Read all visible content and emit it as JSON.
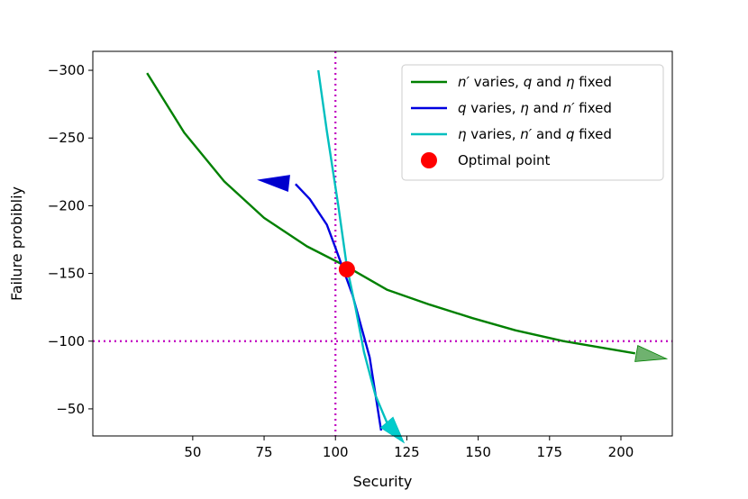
{
  "chart_data": {
    "type": "line",
    "xlabel": "Security",
    "ylabel": "Failure probibliy",
    "xlim": [
      15,
      218
    ],
    "ylim": [
      -30,
      -314
    ],
    "x_ticks": [
      50,
      75,
      100,
      125,
      150,
      175,
      200
    ],
    "x_tick_labels": [
      "50",
      "75",
      "100",
      "125",
      "150",
      "175",
      "200"
    ],
    "y_ticks": [
      -300,
      -250,
      -200,
      -150,
      -100,
      -50
    ],
    "y_tick_labels": [
      "−300",
      "−250",
      "−200",
      "−150",
      "−100",
      "−50"
    ],
    "grid": false,
    "legend_position": "top-right",
    "series": [
      {
        "name": "n′ varies, q and η fixed",
        "legend_parts": [
          {
            "text": "n′",
            "italic": true
          },
          {
            "text": " varies, ",
            "italic": false
          },
          {
            "text": "q",
            "italic": true
          },
          {
            "text": " and ",
            "italic": false
          },
          {
            "text": "η",
            "italic": true
          },
          {
            "text": " fixed",
            "italic": false
          }
        ],
        "color": "#008000",
        "x": [
          34,
          47,
          61,
          75,
          90,
          104,
          118,
          133,
          148,
          163,
          180,
          205
        ],
        "y": [
          -298,
          -254,
          -218,
          -191,
          -170,
          -155,
          -138,
          -127,
          -117,
          -108,
          -100,
          -91
        ],
        "arrow_tip": {
          "x": 216,
          "y": -87
        },
        "arrow_fill": "#6fb26f"
      },
      {
        "name": "q varies, η and n′ fixed",
        "legend_parts": [
          {
            "text": "q",
            "italic": true
          },
          {
            "text": " varies, ",
            "italic": false
          },
          {
            "text": "η",
            "italic": true
          },
          {
            "text": " and ",
            "italic": false
          },
          {
            "text": "n′",
            "italic": true
          },
          {
            "text": " fixed",
            "italic": false
          }
        ],
        "color": "#0000e0",
        "x": [
          116,
          112,
          106,
          100,
          97,
          91,
          86
        ],
        "y": [
          -34,
          -88,
          -134,
          -169,
          -186,
          -205,
          -216
        ],
        "arrow_tip": {
          "x": 73,
          "y": -219
        },
        "arrow_fill": "#0000cc"
      },
      {
        "name": "η varies, n′ and q fixed",
        "legend_parts": [
          {
            "text": "η",
            "italic": true
          },
          {
            "text": " varies, ",
            "italic": false
          },
          {
            "text": "n′",
            "italic": true
          },
          {
            "text": " and ",
            "italic": false
          },
          {
            "text": "q",
            "italic": true
          },
          {
            "text": " fixed",
            "italic": false
          }
        ],
        "color": "#00bfbf",
        "x": [
          94,
          97,
          101,
          104,
          107,
          110,
          114,
          118
        ],
        "y": [
          -300,
          -255,
          -200,
          -155,
          -125,
          -92,
          -60,
          -40
        ],
        "arrow_tip": {
          "x": 124,
          "y": -25
        },
        "arrow_fill": "#00cccc"
      }
    ],
    "optimal_point": {
      "name": "Optimal point",
      "x": 104,
      "y": -153,
      "color": "#ff0000"
    },
    "reference_lines": {
      "vertical_x": 100,
      "horizontal_y": -100,
      "color": "#c000c0"
    }
  }
}
